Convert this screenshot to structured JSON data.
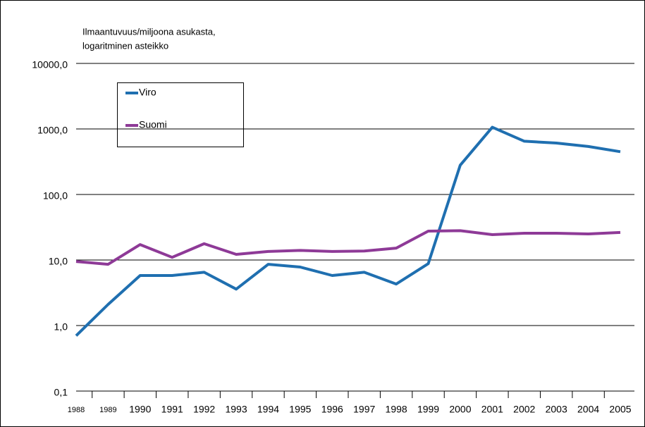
{
  "chart_data": {
    "type": "line",
    "ylabel": [
      "Ilmaantuvuus/miljoona asukasta,",
      "logaritminen asteikko"
    ],
    "categories": [
      "1988",
      "1989",
      "1990",
      "1991",
      "1992",
      "1993",
      "1994",
      "1995",
      "1996",
      "1997",
      "1998",
      "1999",
      "2000",
      "2001",
      "2002",
      "2003",
      "2004",
      "2005"
    ],
    "series": [
      {
        "name": "Viro",
        "color": "#1f6fb0",
        "values": [
          0.7,
          2.1,
          5.8,
          5.8,
          6.5,
          3.6,
          8.6,
          7.8,
          5.8,
          6.5,
          4.3,
          8.8,
          280,
          1060,
          650,
          610,
          540,
          450
        ]
      },
      {
        "name": "Suomi",
        "color": "#8e3a97",
        "values": [
          9.5,
          8.6,
          17.2,
          11,
          17.7,
          12.2,
          13.5,
          14,
          13.5,
          13.7,
          15.2,
          27.6,
          28,
          24.4,
          25.6,
          25.6,
          25,
          26.3
        ]
      }
    ],
    "log": true,
    "ylim": [
      0.1,
      10000
    ],
    "yticks": [
      {
        "value": 0.1,
        "label": "0,1"
      },
      {
        "value": 1,
        "label": "1,0"
      },
      {
        "value": 10,
        "label": "10,0"
      },
      {
        "value": 100,
        "label": "100,0"
      },
      {
        "value": 1000,
        "label": "1000,0"
      },
      {
        "value": 10000,
        "label": "10000,0"
      }
    ],
    "grid": true
  }
}
